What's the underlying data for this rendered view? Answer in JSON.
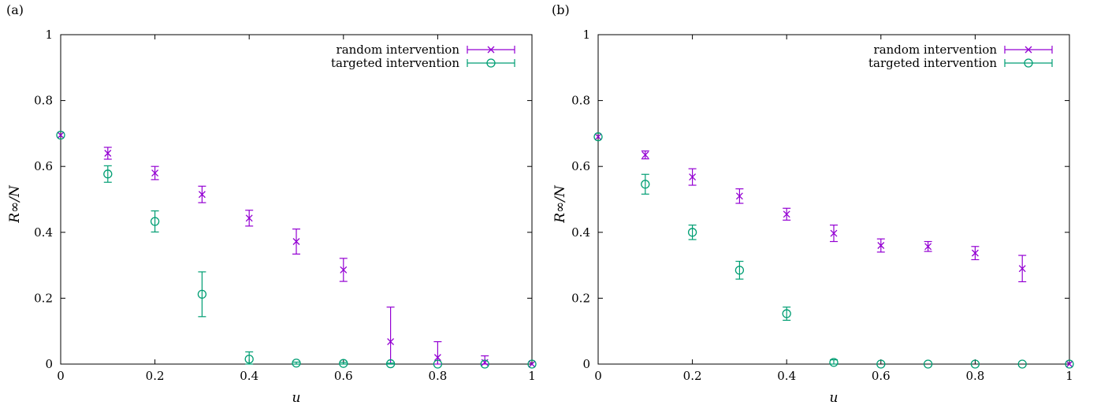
{
  "colors": {
    "random": "#9400d3",
    "targeted": "#009e73",
    "axis": "#000000"
  },
  "chart_data": [
    {
      "type": "scatter",
      "panel_label": "(a)",
      "xlabel": "u",
      "ylabel": "R∞/N",
      "xlim": [
        0,
        1
      ],
      "ylim": [
        0,
        1
      ],
      "x_ticks": [
        "0",
        "0.2",
        "0.4",
        "0.6",
        "0.8",
        "1"
      ],
      "y_ticks": [
        "0",
        "0.2",
        "0.4",
        "0.6",
        "0.8",
        "1"
      ],
      "legend": "top-right",
      "series": [
        {
          "name": "random intervention",
          "marker": "x",
          "x": [
            0,
            0.1,
            0.2,
            0.3,
            0.4,
            0.5,
            0.6,
            0.7,
            0.8,
            0.9,
            1.0
          ],
          "y": [
            0.695,
            0.64,
            0.58,
            0.515,
            0.443,
            0.372,
            0.286,
            0.068,
            0.02,
            0.005,
            0.0
          ],
          "err": [
            0.0,
            0.018,
            0.02,
            0.025,
            0.024,
            0.038,
            0.035,
            0.105,
            0.048,
            0.02,
            0.0
          ]
        },
        {
          "name": "targeted intervention",
          "marker": "o",
          "x": [
            0,
            0.1,
            0.2,
            0.3,
            0.4,
            0.5,
            0.6,
            0.7,
            0.8,
            0.9,
            1.0
          ],
          "y": [
            0.695,
            0.577,
            0.433,
            0.212,
            0.015,
            0.003,
            0.002,
            0.001,
            0.0,
            0.0,
            0.0
          ],
          "err": [
            0.0,
            0.025,
            0.032,
            0.068,
            0.022,
            0.003,
            0.003,
            0.002,
            0.0,
            0.0,
            0.0
          ]
        }
      ]
    },
    {
      "type": "scatter",
      "panel_label": "(b)",
      "xlabel": "u",
      "ylabel": "R∞/N",
      "xlim": [
        0,
        1
      ],
      "ylim": [
        0,
        1
      ],
      "x_ticks": [
        "0",
        "0.2",
        "0.4",
        "0.6",
        "0.8",
        "1"
      ],
      "y_ticks": [
        "0",
        "0.2",
        "0.4",
        "0.6",
        "0.8",
        "1"
      ],
      "legend": "top-right",
      "series": [
        {
          "name": "random intervention",
          "marker": "x",
          "x": [
            0,
            0.1,
            0.2,
            0.3,
            0.4,
            0.5,
            0.6,
            0.7,
            0.8,
            0.9,
            1.0
          ],
          "y": [
            0.69,
            0.635,
            0.568,
            0.51,
            0.455,
            0.397,
            0.36,
            0.357,
            0.337,
            0.29,
            0.0
          ],
          "err": [
            0.0,
            0.012,
            0.025,
            0.022,
            0.018,
            0.025,
            0.02,
            0.015,
            0.02,
            0.04,
            0.0
          ]
        },
        {
          "name": "targeted intervention",
          "marker": "o",
          "x": [
            0,
            0.1,
            0.2,
            0.3,
            0.4,
            0.5,
            0.6,
            0.7,
            0.8,
            0.9,
            1.0
          ],
          "y": [
            0.69,
            0.546,
            0.4,
            0.285,
            0.153,
            0.005,
            0.0,
            0.0,
            0.0,
            0.0,
            0.0
          ],
          "err": [
            0.0,
            0.03,
            0.022,
            0.027,
            0.02,
            0.008,
            0.0,
            0.0,
            0.0,
            0.0,
            0.0
          ]
        }
      ]
    }
  ]
}
